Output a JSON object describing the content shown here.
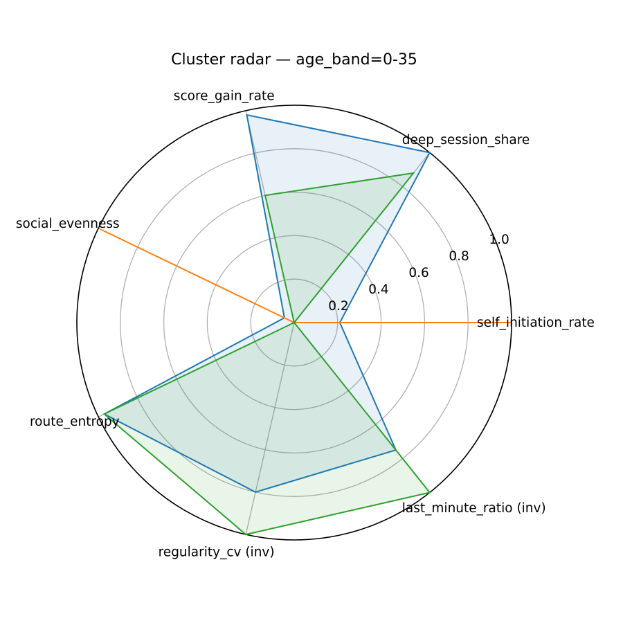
{
  "chart_data": {
    "type": "radar",
    "title": "Cluster radar — age_band=0-35",
    "axes": [
      "self_initiation_rate",
      "deep_session_share",
      "score_gain_rate",
      "social_evenness",
      "route_entropy",
      "regularity_cv (inv)",
      "last_minute_ratio (inv)"
    ],
    "rlim": [
      0,
      1.0
    ],
    "rticks": [
      0.2,
      0.4,
      0.6,
      0.8,
      1.0
    ],
    "rtick_labels": [
      "0.2",
      "0.4",
      "0.6",
      "0.8",
      "1.0"
    ],
    "grid": true,
    "series": [
      {
        "color": "#1f77b4",
        "fill_opacity": 0.1,
        "values": [
          0.21,
          1.0,
          0.98,
          0.05,
          0.97,
          0.8,
          0.75
        ]
      },
      {
        "color": "#ff7f0e",
        "fill_opacity": 0.1,
        "values": [
          1.0,
          0.0,
          0.0,
          0.99,
          0.0,
          0.0,
          0.0
        ]
      },
      {
        "color": "#2ca02c",
        "fill_opacity": 0.1,
        "values": [
          0.0,
          0.88,
          0.6,
          0.0,
          0.97,
          1.0,
          1.0
        ]
      }
    ]
  }
}
